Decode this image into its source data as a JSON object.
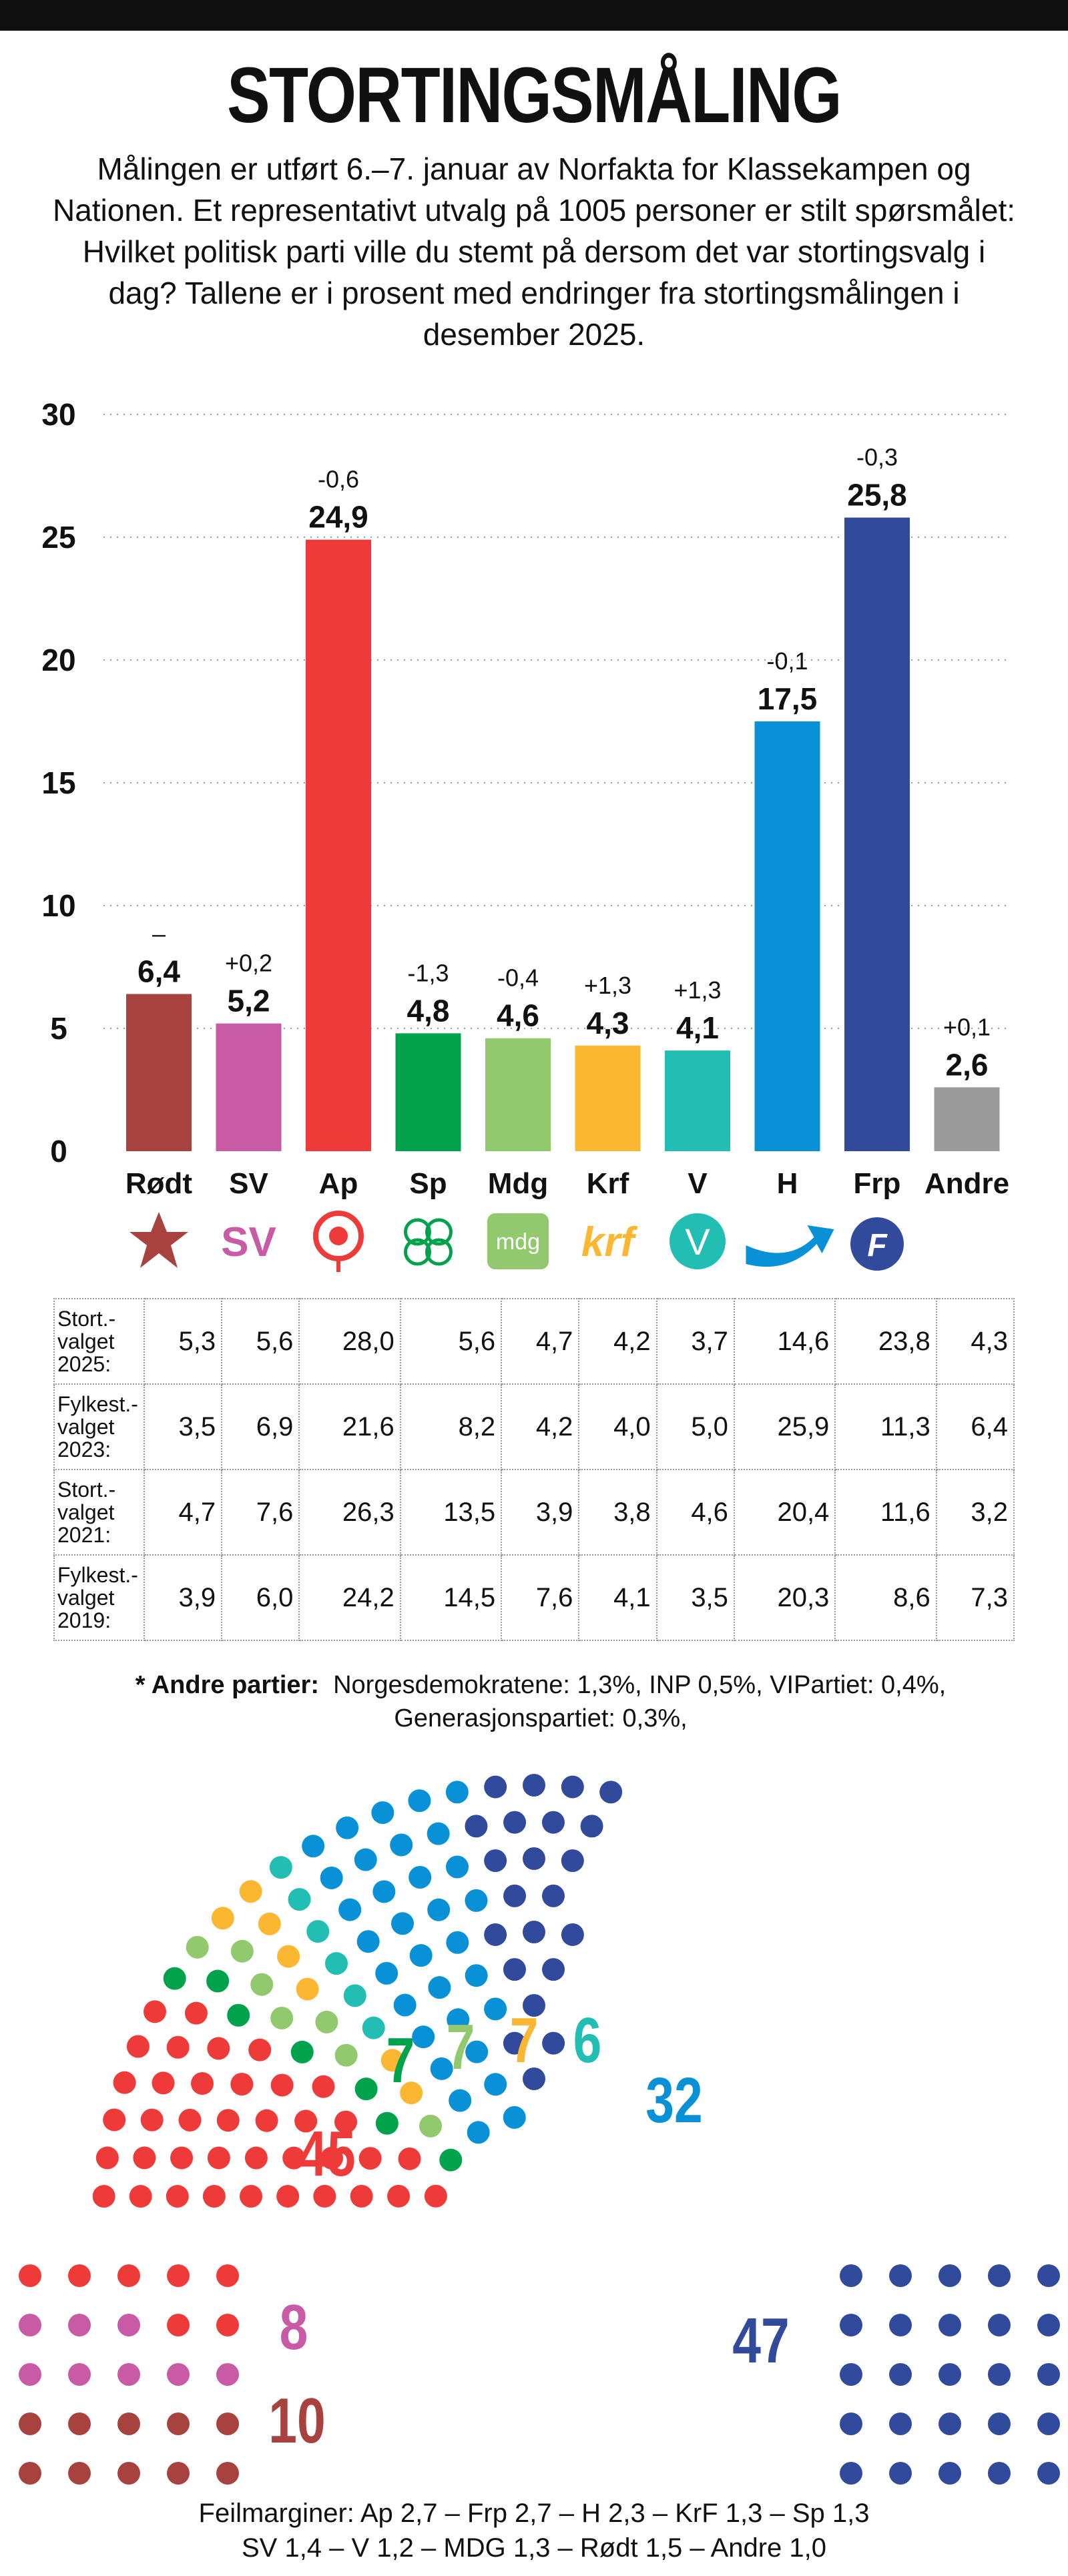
{
  "title": "STORTINGSMÅLING",
  "intro": "Målingen er utført 6.–7. januar av Norfakta for Klassekampen og Nationen. Et representativt utvalg på 1005 personer er stilt spørsmålet: Hvilket politisk parti ville du stemt på dersom det var stortingsvalg i dag? Tallene er i prosent med endringer fra stortingsmålingen i desember 2025.",
  "chart_data": {
    "type": "bar",
    "categories": [
      "Rødt",
      "SV",
      "Ap",
      "Sp",
      "Mdg",
      "Krf",
      "V",
      "H",
      "Frp",
      "Andre"
    ],
    "values": [
      6.4,
      5.2,
      24.9,
      4.8,
      4.6,
      4.3,
      4.1,
      17.5,
      25.8,
      2.6
    ],
    "value_labels": [
      "6,4",
      "5,2",
      "24,9",
      "4,8",
      "4,6",
      "4,3",
      "4,1",
      "17,5",
      "25,8",
      "2,6"
    ],
    "changes": [
      "–",
      "+0,2",
      "-0,6",
      "-1,3",
      "-0,4",
      "+1,3",
      "+1,3",
      "-0,1",
      "-0,3",
      "+0,1"
    ],
    "colors": [
      "#a8423f",
      "#c85aa6",
      "#ee3b3a",
      "#00a24b",
      "#92c86e",
      "#fbb731",
      "#22bdb3",
      "#0891d6",
      "#324a9b",
      "#9b9b9b"
    ],
    "y_ticks": [
      "0",
      "5",
      "10",
      "15",
      "20",
      "25",
      "30"
    ],
    "ylim": [
      0,
      30
    ],
    "grid": true
  },
  "logos": [
    {
      "icon": "rodt-star-icon"
    },
    {
      "icon": "sv-logo-icon",
      "text": "SV"
    },
    {
      "icon": "ap-rose-icon"
    },
    {
      "icon": "sp-clover-icon"
    },
    {
      "icon": "mdg-logo-icon",
      "text": "mdg"
    },
    {
      "icon": "krf-logo-icon",
      "text": "krf"
    },
    {
      "icon": "v-logo-icon",
      "text": "V"
    },
    {
      "icon": "h-arrow-icon"
    },
    {
      "icon": "frp-logo-icon",
      "text": "F"
    },
    {
      "icon": "andre-none"
    }
  ],
  "table": {
    "rows": [
      {
        "label": "Stort.-\nvalget\n2025:",
        "values": [
          "5,3",
          "5,6",
          "28,0",
          "5,6",
          "4,7",
          "4,2",
          "3,7",
          "14,6",
          "23,8",
          "4,3"
        ]
      },
      {
        "label": "Fylkest.-\nvalget\n2023:",
        "values": [
          "3,5",
          "6,9",
          "21,6",
          "8,2",
          "4,2",
          "4,0",
          "5,0",
          "25,9",
          "11,3",
          "6,4"
        ]
      },
      {
        "label": "Stort.-\nvalget\n2021:",
        "values": [
          "4,7",
          "7,6",
          "26,3",
          "13,5",
          "3,9",
          "3,8",
          "4,6",
          "20,4",
          "11,6",
          "3,2"
        ]
      },
      {
        "label": "Fylkest.-\nvalget\n2019:",
        "values": [
          "3,9",
          "6,0",
          "24,2",
          "14,5",
          "7,6",
          "4,1",
          "3,5",
          "20,3",
          "8,6",
          "7,3"
        ]
      }
    ]
  },
  "note": {
    "label": "* Andre partier:",
    "text": "Norgesdemokratene: 1,3%, INP 0,5%, VIPartiet: 0,4%, Generasjonspartiet: 0,3%,"
  },
  "seats": [
    {
      "party": "Rødt",
      "seats": 10,
      "label": "10",
      "color": "#a8423f"
    },
    {
      "party": "SV",
      "seats": 8,
      "label": "8",
      "color": "#c85aa6"
    },
    {
      "party": "Ap",
      "seats": 45,
      "label": "45",
      "color": "#ee3b3a"
    },
    {
      "party": "Sp",
      "seats": 7,
      "label": "7",
      "color": "#00a24b"
    },
    {
      "party": "Mdg",
      "seats": 7,
      "label": "7",
      "color": "#92c86e"
    },
    {
      "party": "Krf",
      "seats": 7,
      "label": "7",
      "color": "#fbb731"
    },
    {
      "party": "V",
      "seats": 6,
      "label": "6",
      "color": "#22bdb3"
    },
    {
      "party": "H",
      "seats": 32,
      "label": "32",
      "color": "#0891d6"
    },
    {
      "party": "Frp",
      "seats": 47,
      "label": "47",
      "color": "#324a9b"
    },
    {
      "party": "Andre",
      "seats": 0,
      "label": "",
      "color": "#9b9b9b"
    }
  ],
  "margins": {
    "line1": "Feilmarginer: Ap 2,7 – Frp 2,7 – H 2,3 – KrF 1,3 – Sp 1,3",
    "line2": "SV 1,4 – V 1,2 – MDG 1,3 – Rødt 1,5 – Andre 1,0"
  }
}
